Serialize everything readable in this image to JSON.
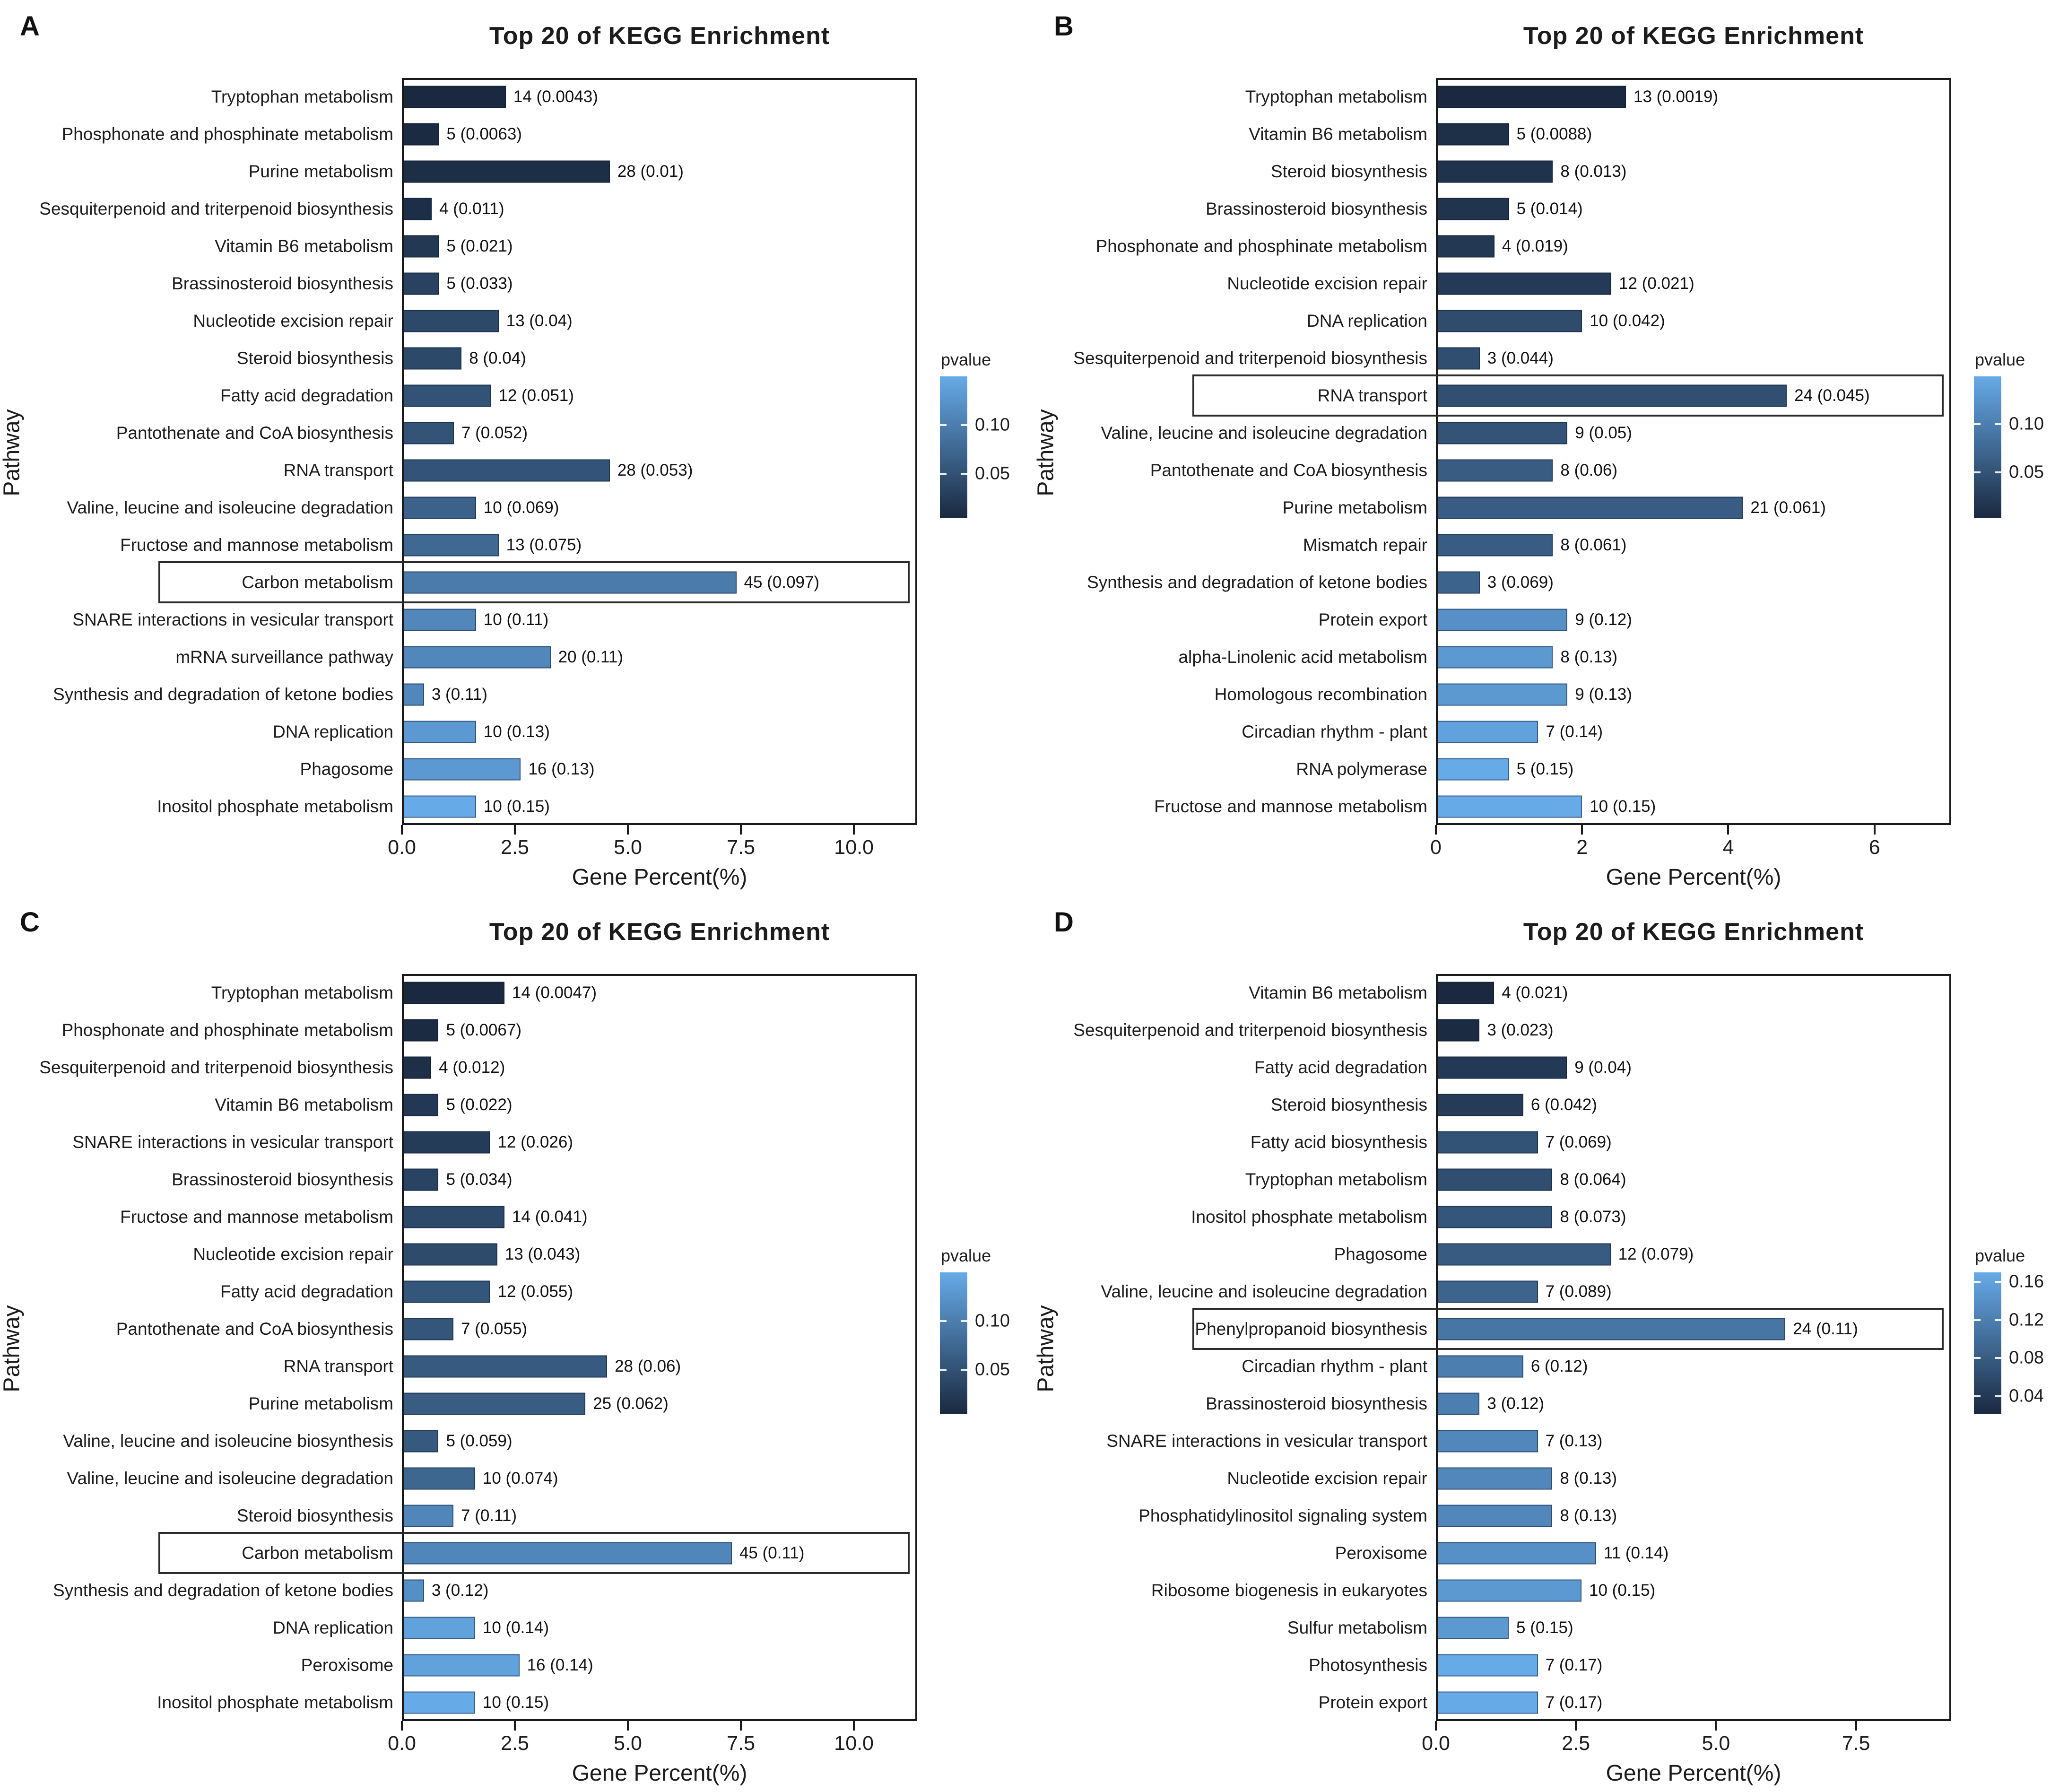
{
  "figure": {
    "background": "#ffffff",
    "bar_color_low_p": "#1a2940",
    "bar_color_high_p": "#66aae8",
    "text_color": "#1c1c1c"
  },
  "chart_data": [
    {
      "type": "bar",
      "panel_letter": "A",
      "title": "Top 20 of KEGG Enrichment",
      "xlabel": "Gene Percent(%)",
      "ylabel": "Pathway",
      "x_max": 11.4,
      "x_ticks": [
        {
          "label": "0.0",
          "value": 0
        },
        {
          "label": "2.5",
          "value": 2.5
        },
        {
          "label": "5.0",
          "value": 5
        },
        {
          "label": "7.5",
          "value": 7.5
        },
        {
          "label": "10.0",
          "value": 10
        }
      ],
      "legend": {
        "title": "pvalue",
        "ticks": [
          "0.10",
          "0.05"
        ]
      },
      "bars": [
        {
          "pathway": "Tryptophan metabolism",
          "count": 14,
          "pvalue": "0.0043",
          "percent": 2.3,
          "boxed": false
        },
        {
          "pathway": "Phosphonate and phosphinate metabolism",
          "count": 5,
          "pvalue": "0.0063",
          "percent": 0.82,
          "boxed": false
        },
        {
          "pathway": "Purine metabolism",
          "count": 28,
          "pvalue": "0.01",
          "percent": 4.6,
          "boxed": false
        },
        {
          "pathway": "Sesquiterpenoid and triterpenoid biosynthesis",
          "count": 4,
          "pvalue": "0.011",
          "percent": 0.66,
          "boxed": false
        },
        {
          "pathway": "Vitamin B6 metabolism",
          "count": 5,
          "pvalue": "0.021",
          "percent": 0.82,
          "boxed": false
        },
        {
          "pathway": "Brassinosteroid biosynthesis",
          "count": 5,
          "pvalue": "0.033",
          "percent": 0.82,
          "boxed": false
        },
        {
          "pathway": "Nucleotide excision repair",
          "count": 13,
          "pvalue": "0.04",
          "percent": 2.14,
          "boxed": false
        },
        {
          "pathway": "Steroid biosynthesis",
          "count": 8,
          "pvalue": "0.04",
          "percent": 1.32,
          "boxed": false
        },
        {
          "pathway": "Fatty acid degradation",
          "count": 12,
          "pvalue": "0.051",
          "percent": 1.97,
          "boxed": false
        },
        {
          "pathway": "Pantothenate and CoA biosynthesis",
          "count": 7,
          "pvalue": "0.052",
          "percent": 1.15,
          "boxed": false
        },
        {
          "pathway": "RNA transport",
          "count": 28,
          "pvalue": "0.053",
          "percent": 4.6,
          "boxed": false
        },
        {
          "pathway": "Valine, leucine and isoleucine degradation",
          "count": 10,
          "pvalue": "0.069",
          "percent": 1.64,
          "boxed": false
        },
        {
          "pathway": "Fructose and mannose metabolism",
          "count": 13,
          "pvalue": "0.075",
          "percent": 2.14,
          "boxed": false
        },
        {
          "pathway": "Carbon metabolism",
          "count": 45,
          "pvalue": "0.097",
          "percent": 7.4,
          "boxed": true
        },
        {
          "pathway": "SNARE interactions in vesicular transport",
          "count": 10,
          "pvalue": "0.11",
          "percent": 1.64,
          "boxed": false
        },
        {
          "pathway": "mRNA surveillance pathway",
          "count": 20,
          "pvalue": "0.11",
          "percent": 3.29,
          "boxed": false
        },
        {
          "pathway": "Synthesis and degradation of ketone bodies",
          "count": 3,
          "pvalue": "0.11",
          "percent": 0.49,
          "boxed": false
        },
        {
          "pathway": "DNA replication",
          "count": 10,
          "pvalue": "0.13",
          "percent": 1.64,
          "boxed": false
        },
        {
          "pathway": "Phagosome",
          "count": 16,
          "pvalue": "0.13",
          "percent": 2.63,
          "boxed": false
        },
        {
          "pathway": "Inositol phosphate metabolism",
          "count": 10,
          "pvalue": "0.15",
          "percent": 1.64,
          "boxed": false
        }
      ]
    },
    {
      "type": "bar",
      "panel_letter": "B",
      "title": "Top 20 of KEGG Enrichment",
      "xlabel": "Gene Percent(%)",
      "ylabel": "Pathway",
      "x_max": 7.05,
      "x_ticks": [
        {
          "label": "0",
          "value": 0
        },
        {
          "label": "2",
          "value": 2
        },
        {
          "label": "4",
          "value": 4
        },
        {
          "label": "6",
          "value": 6
        }
      ],
      "legend": {
        "title": "pvalue",
        "ticks": [
          "0.10",
          "0.05"
        ]
      },
      "bars": [
        {
          "pathway": "Tryptophan metabolism",
          "count": 13,
          "pvalue": "0.0019",
          "percent": 2.6,
          "boxed": false
        },
        {
          "pathway": "Vitamin B6 metabolism",
          "count": 5,
          "pvalue": "0.0088",
          "percent": 1.0,
          "boxed": false
        },
        {
          "pathway": "Steroid biosynthesis",
          "count": 8,
          "pvalue": "0.013",
          "percent": 1.6,
          "boxed": false
        },
        {
          "pathway": "Brassinosteroid biosynthesis",
          "count": 5,
          "pvalue": "0.014",
          "percent": 1.0,
          "boxed": false
        },
        {
          "pathway": "Phosphonate and phosphinate metabolism",
          "count": 4,
          "pvalue": "0.019",
          "percent": 0.8,
          "boxed": false
        },
        {
          "pathway": "Nucleotide excision repair",
          "count": 12,
          "pvalue": "0.021",
          "percent": 2.4,
          "boxed": false
        },
        {
          "pathway": "DNA replication",
          "count": 10,
          "pvalue": "0.042",
          "percent": 2.0,
          "boxed": false
        },
        {
          "pathway": "Sesquiterpenoid and triterpenoid biosynthesis",
          "count": 3,
          "pvalue": "0.044",
          "percent": 0.6,
          "boxed": false
        },
        {
          "pathway": "RNA transport",
          "count": 24,
          "pvalue": "0.045",
          "percent": 4.8,
          "boxed": true
        },
        {
          "pathway": "Valine, leucine and isoleucine degradation",
          "count": 9,
          "pvalue": "0.05",
          "percent": 1.8,
          "boxed": false
        },
        {
          "pathway": "Pantothenate and CoA biosynthesis",
          "count": 8,
          "pvalue": "0.06",
          "percent": 1.6,
          "boxed": false
        },
        {
          "pathway": "Purine metabolism",
          "count": 21,
          "pvalue": "0.061",
          "percent": 4.2,
          "boxed": false
        },
        {
          "pathway": "Mismatch repair",
          "count": 8,
          "pvalue": "0.061",
          "percent": 1.6,
          "boxed": false
        },
        {
          "pathway": "Synthesis and degradation of ketone bodies",
          "count": 3,
          "pvalue": "0.069",
          "percent": 0.6,
          "boxed": false
        },
        {
          "pathway": "Protein export",
          "count": 9,
          "pvalue": "0.12",
          "percent": 1.8,
          "boxed": false
        },
        {
          "pathway": "alpha-Linolenic acid metabolism",
          "count": 8,
          "pvalue": "0.13",
          "percent": 1.6,
          "boxed": false
        },
        {
          "pathway": "Homologous recombination",
          "count": 9,
          "pvalue": "0.13",
          "percent": 1.8,
          "boxed": false
        },
        {
          "pathway": "Circadian rhythm - plant",
          "count": 7,
          "pvalue": "0.14",
          "percent": 1.4,
          "boxed": false
        },
        {
          "pathway": "RNA polymerase",
          "count": 5,
          "pvalue": "0.15",
          "percent": 1.0,
          "boxed": false
        },
        {
          "pathway": "Fructose and mannose metabolism",
          "count": 10,
          "pvalue": "0.15",
          "percent": 2.0,
          "boxed": false
        }
      ]
    },
    {
      "type": "bar",
      "panel_letter": "C",
      "title": "Top 20 of KEGG Enrichment",
      "xlabel": "Gene Percent(%)",
      "ylabel": "Pathway",
      "x_max": 11.4,
      "x_ticks": [
        {
          "label": "0.0",
          "value": 0
        },
        {
          "label": "2.5",
          "value": 2.5
        },
        {
          "label": "5.0",
          "value": 5
        },
        {
          "label": "7.5",
          "value": 7.5
        },
        {
          "label": "10.0",
          "value": 10
        }
      ],
      "legend": {
        "title": "pvalue",
        "ticks": [
          "0.10",
          "0.05"
        ]
      },
      "bars": [
        {
          "pathway": "Tryptophan metabolism",
          "count": 14,
          "pvalue": "0.0047",
          "percent": 2.27,
          "boxed": false
        },
        {
          "pathway": "Phosphonate and phosphinate metabolism",
          "count": 5,
          "pvalue": "0.0067",
          "percent": 0.81,
          "boxed": false
        },
        {
          "pathway": "Sesquiterpenoid and triterpenoid biosynthesis",
          "count": 4,
          "pvalue": "0.012",
          "percent": 0.65,
          "boxed": false
        },
        {
          "pathway": "Vitamin B6 metabolism",
          "count": 5,
          "pvalue": "0.022",
          "percent": 0.81,
          "boxed": false
        },
        {
          "pathway": "SNARE interactions in vesicular transport",
          "count": 12,
          "pvalue": "0.026",
          "percent": 1.95,
          "boxed": false
        },
        {
          "pathway": "Brassinosteroid biosynthesis",
          "count": 5,
          "pvalue": "0.034",
          "percent": 0.81,
          "boxed": false
        },
        {
          "pathway": "Fructose and mannose metabolism",
          "count": 14,
          "pvalue": "0.041",
          "percent": 2.27,
          "boxed": false
        },
        {
          "pathway": "Nucleotide excision repair",
          "count": 13,
          "pvalue": "0.043",
          "percent": 2.11,
          "boxed": false
        },
        {
          "pathway": "Fatty acid degradation",
          "count": 12,
          "pvalue": "0.055",
          "percent": 1.95,
          "boxed": false
        },
        {
          "pathway": "Pantothenate and CoA biosynthesis",
          "count": 7,
          "pvalue": "0.055",
          "percent": 1.14,
          "boxed": false
        },
        {
          "pathway": "RNA transport",
          "count": 28,
          "pvalue": "0.06",
          "percent": 4.54,
          "boxed": false
        },
        {
          "pathway": "Purine metabolism",
          "count": 25,
          "pvalue": "0.062",
          "percent": 4.06,
          "boxed": false
        },
        {
          "pathway": "Valine, leucine and isoleucine biosynthesis",
          "count": 5,
          "pvalue": "0.059",
          "percent": 0.81,
          "boxed": false
        },
        {
          "pathway": "Valine, leucine and isoleucine degradation",
          "count": 10,
          "pvalue": "0.074",
          "percent": 1.62,
          "boxed": false
        },
        {
          "pathway": "Steroid biosynthesis",
          "count": 7,
          "pvalue": "0.11",
          "percent": 1.14,
          "boxed": false
        },
        {
          "pathway": "Carbon metabolism",
          "count": 45,
          "pvalue": "0.11",
          "percent": 7.3,
          "boxed": true
        },
        {
          "pathway": "Synthesis and degradation of ketone bodies",
          "count": 3,
          "pvalue": "0.12",
          "percent": 0.49,
          "boxed": false
        },
        {
          "pathway": "DNA replication",
          "count": 10,
          "pvalue": "0.14",
          "percent": 1.62,
          "boxed": false
        },
        {
          "pathway": "Peroxisome",
          "count": 16,
          "pvalue": "0.14",
          "percent": 2.6,
          "boxed": false
        },
        {
          "pathway": "Inositol phosphate metabolism",
          "count": 10,
          "pvalue": "0.15",
          "percent": 1.62,
          "boxed": false
        }
      ]
    },
    {
      "type": "bar",
      "panel_letter": "D",
      "title": "Top 20 of KEGG Enrichment",
      "xlabel": "Gene Percent(%)",
      "ylabel": "Pathway",
      "x_max": 9.2,
      "x_ticks": [
        {
          "label": "0.0",
          "value": 0
        },
        {
          "label": "2.5",
          "value": 2.5
        },
        {
          "label": "5.0",
          "value": 5
        },
        {
          "label": "7.5",
          "value": 7.5
        }
      ],
      "legend": {
        "title": "pvalue",
        "ticks": [
          "0.16",
          "0.12",
          "0.08",
          "0.04"
        ]
      },
      "bars": [
        {
          "pathway": "Vitamin B6 metabolism",
          "count": 4,
          "pvalue": "0.021",
          "percent": 1.04,
          "boxed": false
        },
        {
          "pathway": "Sesquiterpenoid and triterpenoid biosynthesis",
          "count": 3,
          "pvalue": "0.023",
          "percent": 0.78,
          "boxed": false
        },
        {
          "pathway": "Fatty acid degradation",
          "count": 9,
          "pvalue": "0.04",
          "percent": 2.34,
          "boxed": false
        },
        {
          "pathway": "Steroid biosynthesis",
          "count": 6,
          "pvalue": "0.042",
          "percent": 1.56,
          "boxed": false
        },
        {
          "pathway": "Fatty acid biosynthesis",
          "count": 7,
          "pvalue": "0.069",
          "percent": 1.82,
          "boxed": false
        },
        {
          "pathway": "Tryptophan metabolism",
          "count": 8,
          "pvalue": "0.064",
          "percent": 2.08,
          "boxed": false
        },
        {
          "pathway": "Inositol phosphate metabolism",
          "count": 8,
          "pvalue": "0.073",
          "percent": 2.08,
          "boxed": false
        },
        {
          "pathway": "Phagosome",
          "count": 12,
          "pvalue": "0.079",
          "percent": 3.12,
          "boxed": false
        },
        {
          "pathway": "Valine, leucine and isoleucine degradation",
          "count": 7,
          "pvalue": "0.089",
          "percent": 1.82,
          "boxed": false
        },
        {
          "pathway": "Phenylpropanoid biosynthesis",
          "count": 24,
          "pvalue": "0.11",
          "percent": 6.24,
          "boxed": true
        },
        {
          "pathway": "Circadian rhythm - plant",
          "count": 6,
          "pvalue": "0.12",
          "percent": 1.56,
          "boxed": false
        },
        {
          "pathway": "Brassinosteroid biosynthesis",
          "count": 3,
          "pvalue": "0.12",
          "percent": 0.78,
          "boxed": false
        },
        {
          "pathway": "SNARE interactions in vesicular transport",
          "count": 7,
          "pvalue": "0.13",
          "percent": 1.82,
          "boxed": false
        },
        {
          "pathway": "Nucleotide excision repair",
          "count": 8,
          "pvalue": "0.13",
          "percent": 2.08,
          "boxed": false
        },
        {
          "pathway": "Phosphatidylinositol signaling system",
          "count": 8,
          "pvalue": "0.13",
          "percent": 2.08,
          "boxed": false
        },
        {
          "pathway": "Peroxisome",
          "count": 11,
          "pvalue": "0.14",
          "percent": 2.86,
          "boxed": false
        },
        {
          "pathway": "Ribosome biogenesis in eukaryotes",
          "count": 10,
          "pvalue": "0.15",
          "percent": 2.6,
          "boxed": false
        },
        {
          "pathway": "Sulfur metabolism",
          "count": 5,
          "pvalue": "0.15",
          "percent": 1.3,
          "boxed": false
        },
        {
          "pathway": "Photosynthesis",
          "count": 7,
          "pvalue": "0.17",
          "percent": 1.82,
          "boxed": false
        },
        {
          "pathway": "Protein export",
          "count": 7,
          "pvalue": "0.17",
          "percent": 1.82,
          "boxed": false
        }
      ]
    }
  ]
}
